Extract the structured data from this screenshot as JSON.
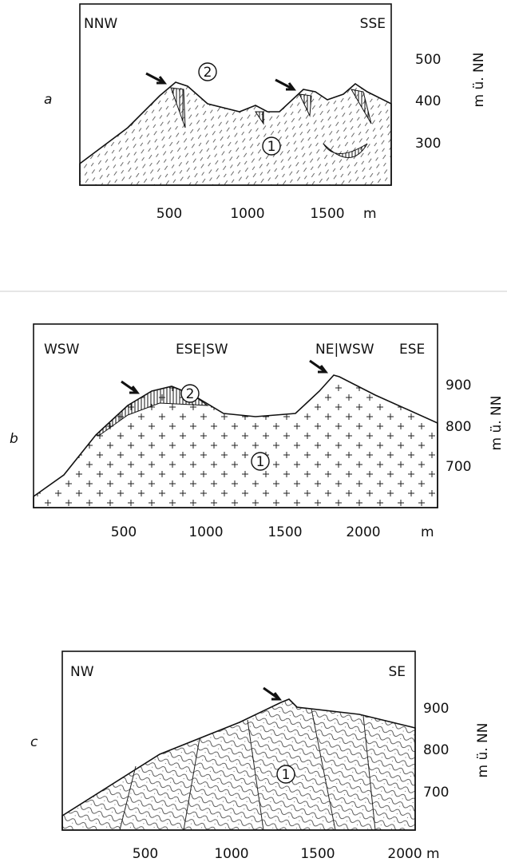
{
  "panels": [
    {
      "label": "a",
      "left": "NNW",
      "right": "SSE",
      "x_ticks": [
        500,
        1000,
        1500
      ],
      "x_unit": "m",
      "y_ticks": [
        500,
        400,
        300
      ],
      "y_unit": "m ü. NN",
      "markers": [
        "2",
        "1"
      ]
    },
    {
      "label": "b",
      "top_labels": [
        "WSW",
        "ESE|SW",
        "NE|WSW",
        "ESE"
      ],
      "x_ticks": [
        500,
        1000,
        1500,
        2000
      ],
      "x_unit": "m",
      "y_ticks": [
        900,
        800,
        700
      ],
      "y_unit": "m ü. NN",
      "markers": [
        "2",
        "1"
      ]
    },
    {
      "label": "c",
      "left": "NW",
      "right": "SE",
      "x_ticks": [
        500,
        1000,
        1500,
        "2000 m"
      ],
      "y_ticks": [
        900,
        800,
        700
      ],
      "y_unit": "m ü. NN",
      "markers": [
        "1"
      ]
    }
  ]
}
